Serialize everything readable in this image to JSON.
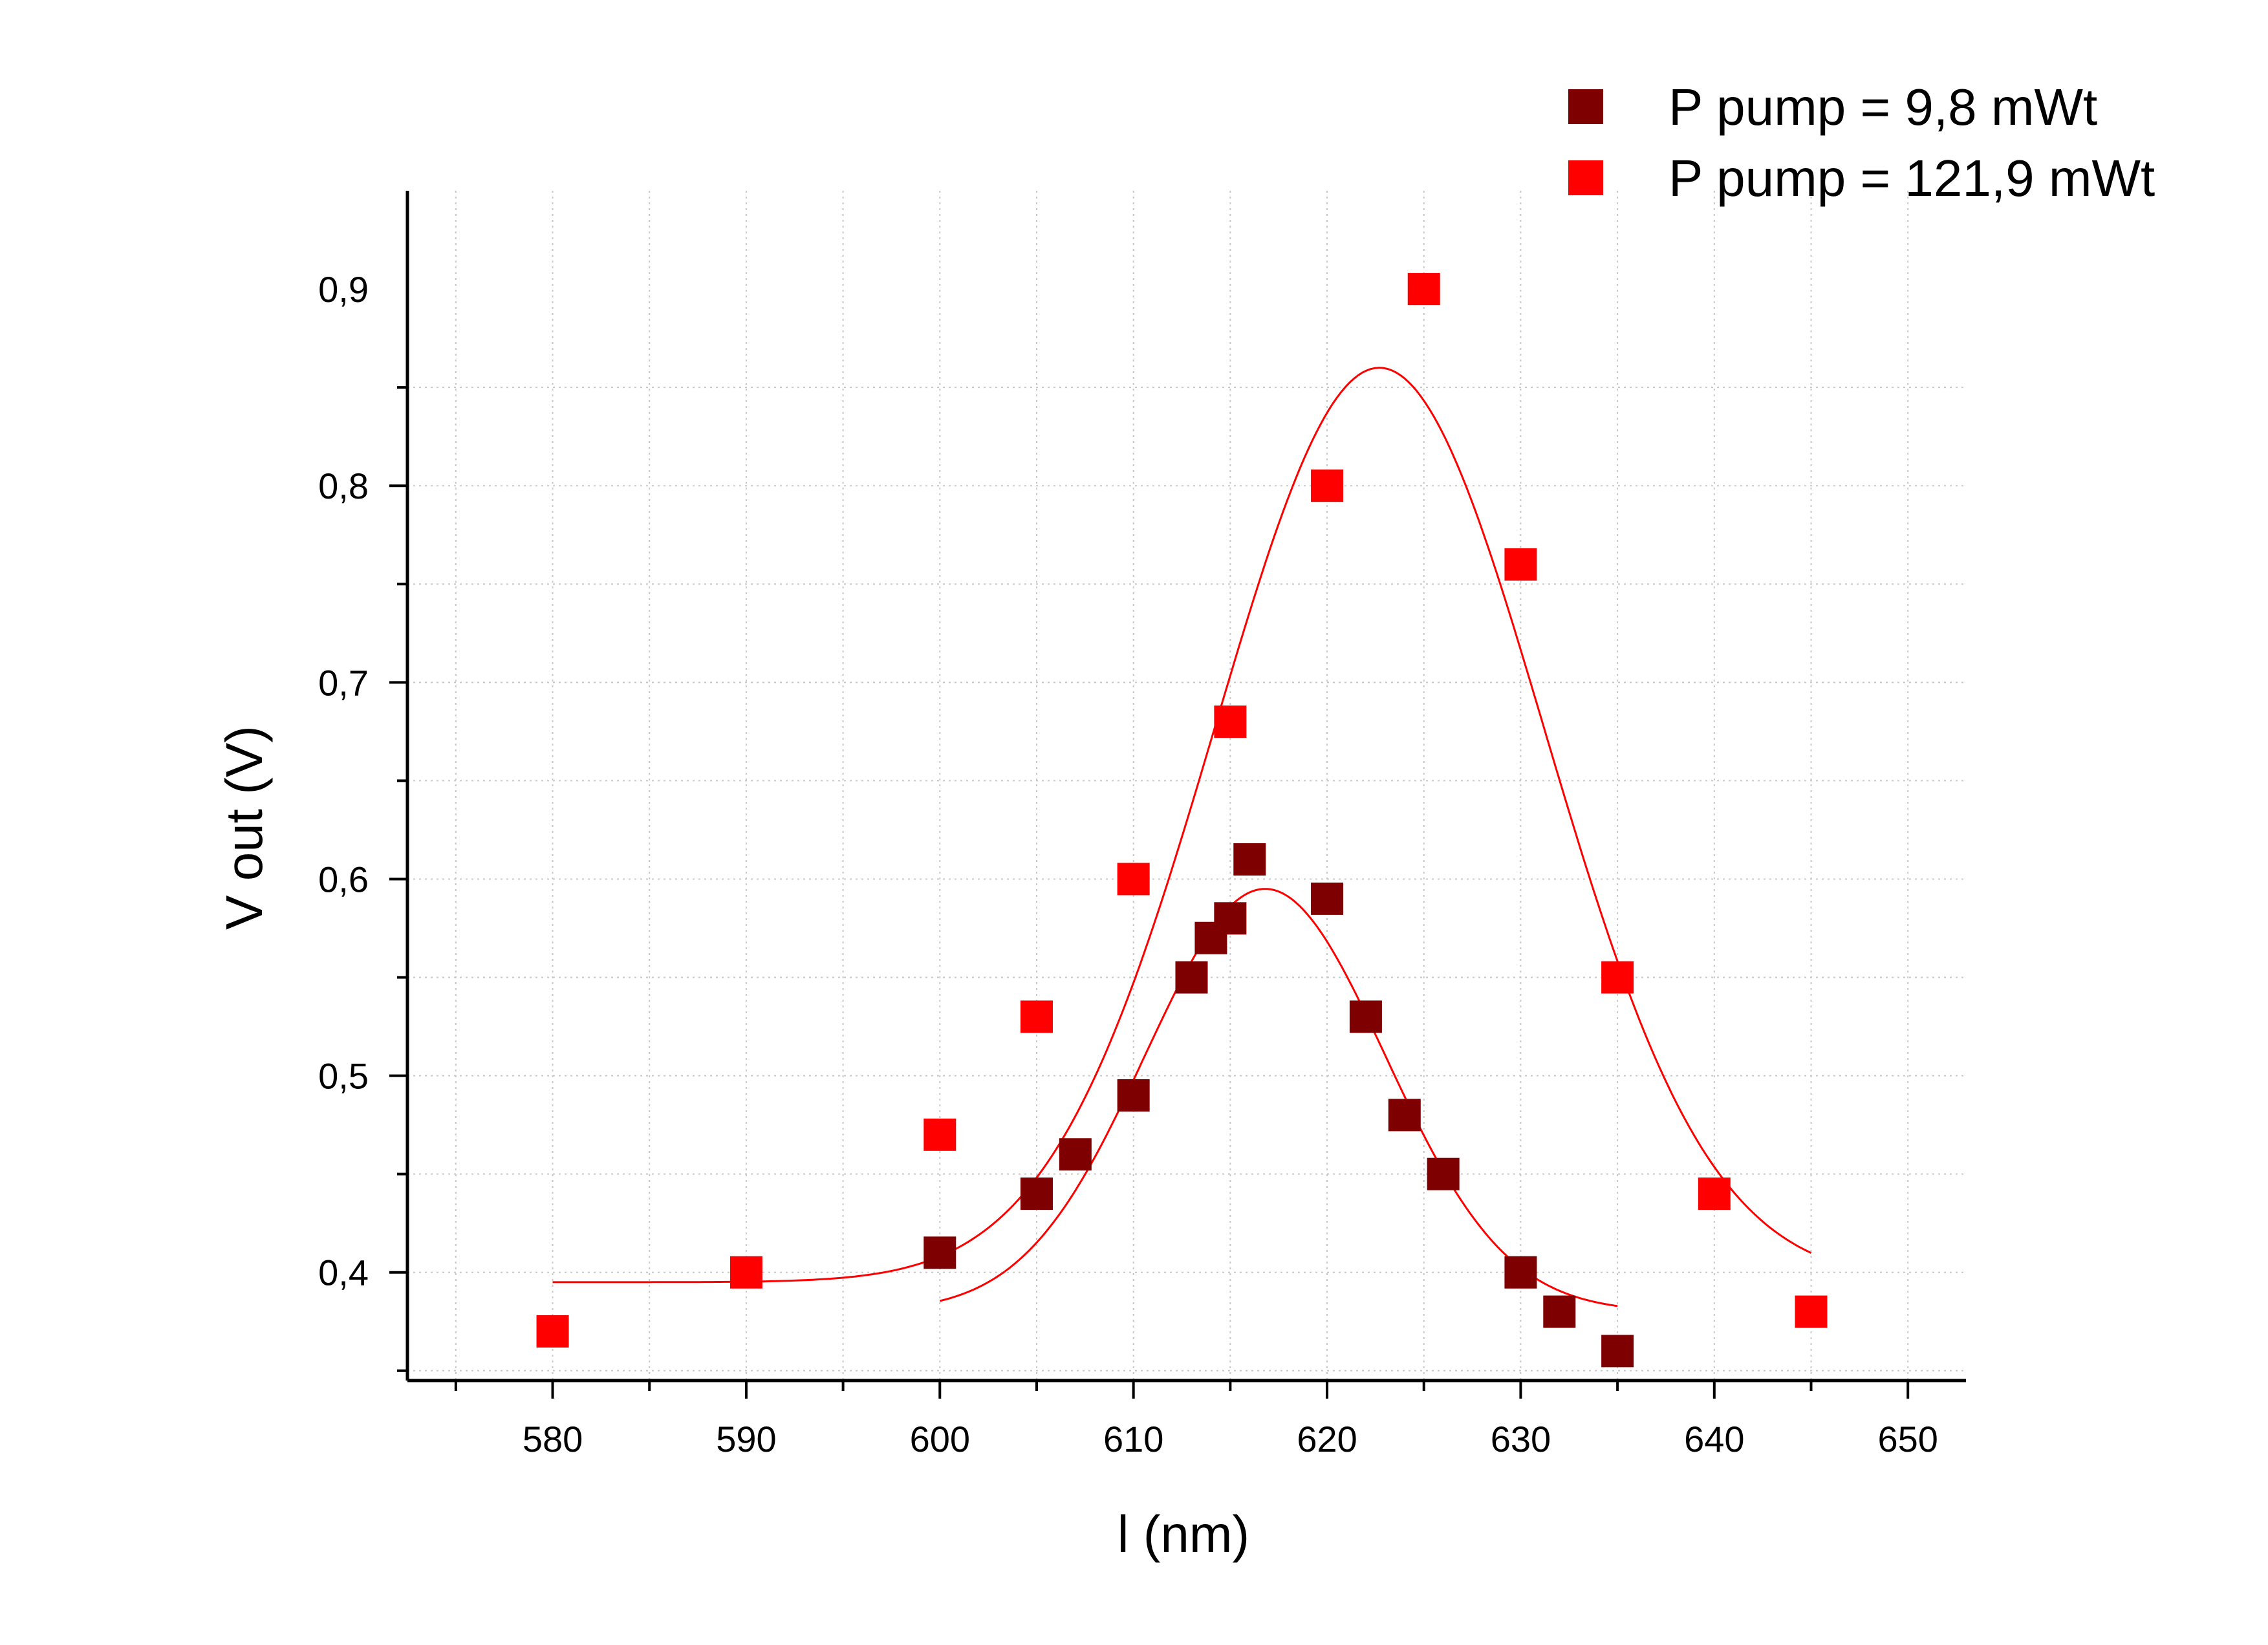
{
  "chart_data": {
    "type": "scatter",
    "xlabel": "l (nm)",
    "ylabel": "V out (V)",
    "xlim": [
      572.5,
      653
    ],
    "ylim": [
      0.345,
      0.95
    ],
    "x_ticks": [
      580,
      590,
      600,
      610,
      620,
      630,
      640,
      650
    ],
    "x_tick_labels": [
      "580",
      "590",
      "600",
      "610",
      "620",
      "630",
      "640",
      "650"
    ],
    "y_ticks": [
      0.4,
      0.5,
      0.6,
      0.7,
      0.8,
      0.9
    ],
    "y_tick_labels": [
      "0,4",
      "0,5",
      "0,6",
      "0,7",
      "0,8",
      "0,9"
    ],
    "grid": true,
    "legend_position": "top-right",
    "series": [
      {
        "name": "P pump = 9,8 mWt",
        "color": "#7f0000",
        "marker": "square",
        "points": [
          [
            600,
            0.41
          ],
          [
            605,
            0.44
          ],
          [
            607,
            0.46
          ],
          [
            610,
            0.49
          ],
          [
            613,
            0.55
          ],
          [
            614,
            0.57
          ],
          [
            615,
            0.58
          ],
          [
            616,
            0.61
          ],
          [
            620,
            0.59
          ],
          [
            622,
            0.53
          ],
          [
            624,
            0.48
          ],
          [
            626,
            0.45
          ],
          [
            630,
            0.4
          ],
          [
            632,
            0.38
          ],
          [
            635,
            0.36
          ]
        ],
        "fit": {
          "type": "gaussian",
          "y0": 0.38,
          "A": 0.215,
          "xc": 616.8,
          "sigma": 6.2,
          "x_range": [
            600,
            635
          ]
        }
      },
      {
        "name": "P pump = 121,9 mWt",
        "color": "#ff0000",
        "marker": "square",
        "points": [
          [
            580,
            0.37
          ],
          [
            590,
            0.4
          ],
          [
            600,
            0.47
          ],
          [
            605,
            0.53
          ],
          [
            610,
            0.6
          ],
          [
            615,
            0.68
          ],
          [
            620,
            0.8
          ],
          [
            625,
            0.9
          ],
          [
            630,
            0.76
          ],
          [
            635,
            0.55
          ],
          [
            640,
            0.44
          ],
          [
            645,
            0.38
          ]
        ],
        "fit": {
          "type": "gaussian",
          "y0": 0.395,
          "A": 0.465,
          "xc": 622.7,
          "sigma": 8.5,
          "x_range": [
            580,
            645
          ]
        }
      }
    ]
  }
}
